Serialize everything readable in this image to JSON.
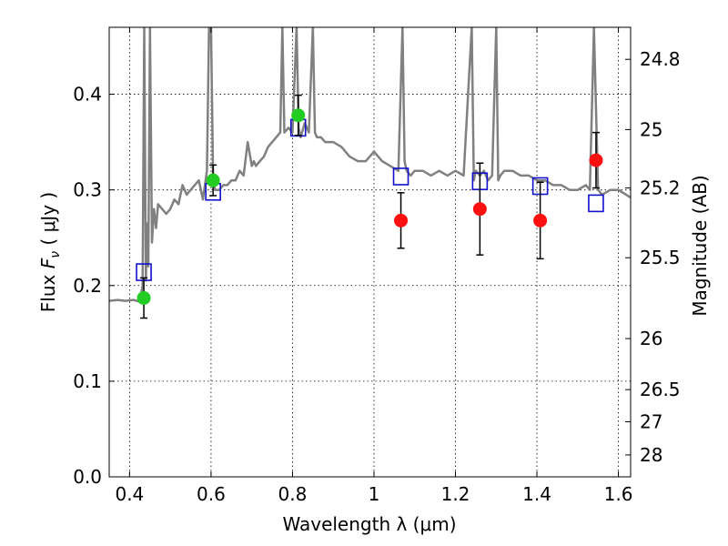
{
  "chart_data": {
    "type": "scatter",
    "xlabel": "Wavelength  λ (μm)",
    "ylabel": "Flux  F_ν  ( μJy )",
    "ylabel_parts": {
      "pre": "Flux  ",
      "sym": "F",
      "sub": "ν",
      "post": "  ( μJy )"
    },
    "y2label": "Magnitude (AB)",
    "xlim": [
      0.35,
      1.63
    ],
    "ylim": [
      0.0,
      0.47
    ],
    "grid": true,
    "x_ticks": [
      {
        "value": 0.4,
        "label": "0.4"
      },
      {
        "value": 0.6,
        "label": "0.6"
      },
      {
        "value": 0.8,
        "label": "0.8"
      },
      {
        "value": 1.0,
        "label": "1"
      },
      {
        "value": 1.2,
        "label": "1.2"
      },
      {
        "value": 1.4,
        "label": "1.4"
      },
      {
        "value": 1.6,
        "label": "1.6"
      }
    ],
    "y_ticks": [
      {
        "value": 0.0,
        "label": "0.0"
      },
      {
        "value": 0.1,
        "label": "0.1"
      },
      {
        "value": 0.2,
        "label": "0.2"
      },
      {
        "value": 0.3,
        "label": "0.3"
      },
      {
        "value": 0.4,
        "label": "0.4"
      }
    ],
    "y2_ticks": [
      {
        "value": 24.8,
        "label": "24.8"
      },
      {
        "value": 25.0,
        "label": "25"
      },
      {
        "value": 25.2,
        "label": "25.2"
      },
      {
        "value": 25.5,
        "label": "25.5"
      },
      {
        "value": 26.0,
        "label": "26"
      },
      {
        "value": 26.5,
        "label": "26.5"
      },
      {
        "value": 27.0,
        "label": "27"
      },
      {
        "value": 28.0,
        "label": "28"
      }
    ],
    "colors": {
      "model_spectrum": "#808080",
      "optical_points": "#22cc22",
      "nir_points": "#ff1010",
      "model_photometry": "#1111cc",
      "error_bars": "#000000"
    },
    "series": [
      {
        "marker": "circle",
        "color": "#22cc22",
        "points": [
          {
            "x": 0.435,
            "y": 0.187,
            "err_low": 0.021,
            "err_high": 0.021
          },
          {
            "x": 0.605,
            "y": 0.31,
            "err_low": 0.016,
            "err_high": 0.016
          },
          {
            "x": 0.814,
            "y": 0.378,
            "err_low": 0.021,
            "err_high": 0.021
          }
        ]
      },
      {
        "marker": "circle",
        "color": "#ff1010",
        "points": [
          {
            "x": 1.066,
            "y": 0.268,
            "err_low": 0.029,
            "err_high": 0.029
          },
          {
            "x": 1.26,
            "y": 0.28,
            "err_low": 0.048,
            "err_high": 0.048
          },
          {
            "x": 1.408,
            "y": 0.268,
            "err_low": 0.04,
            "err_high": 0.04
          },
          {
            "x": 1.545,
            "y": 0.331,
            "err_low": 0.029,
            "err_high": 0.029
          }
        ]
      },
      {
        "marker": "open-square",
        "color": "#1111cc",
        "points": [
          {
            "x": 0.435,
            "y": 0.214
          },
          {
            "x": 0.605,
            "y": 0.298
          },
          {
            "x": 0.814,
            "y": 0.365
          },
          {
            "x": 1.066,
            "y": 0.314
          },
          {
            "x": 1.26,
            "y": 0.309
          },
          {
            "x": 1.408,
            "y": 0.304
          },
          {
            "x": 1.545,
            "y": 0.286
          }
        ]
      },
      {
        "type": "line",
        "color": "#808080",
        "x": [
          0.35,
          0.37,
          0.39,
          0.41,
          0.425,
          0.432,
          0.436,
          0.44,
          0.443,
          0.446,
          0.45,
          0.455,
          0.46,
          0.465,
          0.47,
          0.48,
          0.49,
          0.5,
          0.51,
          0.52,
          0.53,
          0.54,
          0.55,
          0.56,
          0.57,
          0.58,
          0.59,
          0.595,
          0.6,
          0.605,
          0.61,
          0.62,
          0.63,
          0.64,
          0.65,
          0.66,
          0.67,
          0.68,
          0.69,
          0.7,
          0.705,
          0.71,
          0.72,
          0.73,
          0.74,
          0.75,
          0.76,
          0.77,
          0.775,
          0.78,
          0.79,
          0.8,
          0.81,
          0.815,
          0.82,
          0.83,
          0.84,
          0.85,
          0.855,
          0.86,
          0.87,
          0.88,
          0.9,
          0.92,
          0.94,
          0.96,
          0.98,
          1.0,
          1.02,
          1.04,
          1.06,
          1.07,
          1.075,
          1.08,
          1.09,
          1.1,
          1.12,
          1.14,
          1.16,
          1.18,
          1.2,
          1.22,
          1.24,
          1.245,
          1.25,
          1.26,
          1.27,
          1.28,
          1.29,
          1.3,
          1.305,
          1.31,
          1.32,
          1.34,
          1.36,
          1.38,
          1.4,
          1.42,
          1.44,
          1.46,
          1.48,
          1.5,
          1.52,
          1.53,
          1.54,
          1.55,
          1.56,
          1.58,
          1.6,
          1.63
        ],
        "y": [
          0.184,
          0.185,
          0.184,
          0.185,
          0.183,
          0.2,
          0.47,
          0.205,
          0.265,
          0.22,
          0.47,
          0.245,
          0.28,
          0.26,
          0.285,
          0.28,
          0.275,
          0.28,
          0.29,
          0.285,
          0.305,
          0.295,
          0.3,
          0.305,
          0.31,
          0.29,
          0.32,
          0.47,
          0.47,
          0.31,
          0.3,
          0.3,
          0.305,
          0.305,
          0.31,
          0.31,
          0.32,
          0.315,
          0.35,
          0.325,
          0.33,
          0.325,
          0.33,
          0.335,
          0.345,
          0.35,
          0.355,
          0.36,
          0.47,
          0.36,
          0.365,
          0.36,
          0.47,
          0.365,
          0.355,
          0.37,
          0.36,
          0.47,
          0.36,
          0.355,
          0.355,
          0.35,
          0.35,
          0.345,
          0.335,
          0.33,
          0.33,
          0.34,
          0.33,
          0.325,
          0.32,
          0.47,
          0.33,
          0.32,
          0.315,
          0.32,
          0.32,
          0.315,
          0.32,
          0.315,
          0.32,
          0.315,
          0.47,
          0.31,
          0.32,
          0.315,
          0.32,
          0.31,
          0.315,
          0.47,
          0.31,
          0.315,
          0.32,
          0.32,
          0.315,
          0.315,
          0.31,
          0.31,
          0.305,
          0.305,
          0.3,
          0.3,
          0.305,
          0.3,
          0.47,
          0.3,
          0.295,
          0.3,
          0.3,
          0.292
        ]
      }
    ]
  }
}
